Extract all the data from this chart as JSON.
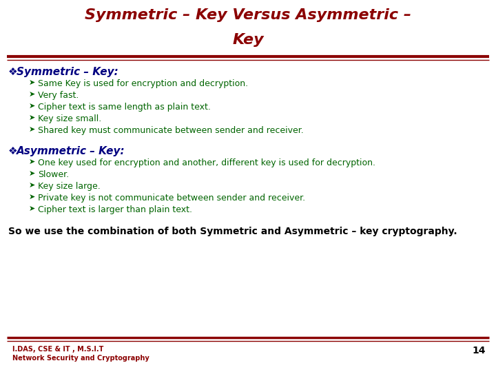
{
  "title_line1": "Symmetric – Key Versus Asymmetric –",
  "title_line2": "Key",
  "title_color": "#8B0000",
  "background_color": "#FFFFFF",
  "separator_color": "#8B0000",
  "section1_header_bullet": "❖",
  "section1_header_text": "Symmetric – Key:",
  "section1_header_color": "#000080",
  "section1_items": [
    "Same Key is used for encryption and decryption.",
    "Very fast.",
    "Cipher text is same length as plain text.",
    "Key size small.",
    "Shared key must communicate between sender and receiver."
  ],
  "section1_color": "#006400",
  "section2_header_bullet": "❖",
  "section2_header_text": "Asymmetric – Key:",
  "section2_header_color": "#000080",
  "section2_items": [
    "One key used for encryption and another, different key is used for decryption.",
    "Slower.",
    "Key size large.",
    "Private key is not communicate between sender and receiver.",
    "Cipher text is larger than plain text."
  ],
  "section2_color": "#006400",
  "footer_text": "So we use the combination of both Symmetric and Asymmetric – key cryptography.",
  "footer_color": "#000000",
  "footer_left_line1": "I.DAS, CSE & IT , M.S.I.T",
  "footer_left_line2": "Network Security and Cryptography",
  "footer_left_color": "#8B0000",
  "page_number": "14",
  "page_number_color": "#000000",
  "title_fontsize": 16,
  "header_fontsize": 11,
  "item_fontsize": 9,
  "footer_fontsize": 10,
  "footer_info_fontsize": 7
}
